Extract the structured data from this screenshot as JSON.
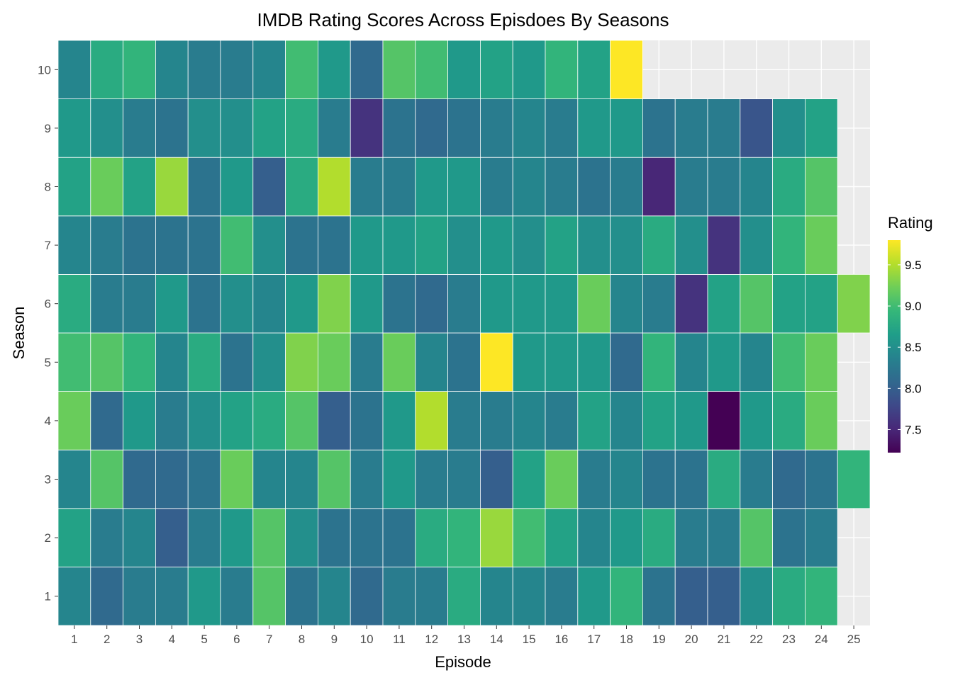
{
  "chart_data": {
    "type": "heatmap",
    "title": "IMDB Rating Scores Across Episdoes By Seasons",
    "xlabel": "Episode",
    "ylabel": "Season",
    "x_categories": [
      "1",
      "2",
      "3",
      "4",
      "5",
      "6",
      "7",
      "8",
      "9",
      "10",
      "11",
      "12",
      "13",
      "14",
      "15",
      "16",
      "17",
      "18",
      "19",
      "20",
      "21",
      "22",
      "23",
      "24",
      "25"
    ],
    "y_categories": [
      "1",
      "2",
      "3",
      "4",
      "5",
      "6",
      "7",
      "8",
      "9",
      "10"
    ],
    "values": [
      [
        8.4,
        8.1,
        8.3,
        8.3,
        8.6,
        8.3,
        9.1,
        8.2,
        8.4,
        8.1,
        8.3,
        8.3,
        8.8,
        8.4,
        8.4,
        8.3,
        8.6,
        8.9,
        8.2,
        8.0,
        8.0,
        8.5,
        8.8,
        8.9,
        null
      ],
      [
        8.7,
        8.3,
        8.4,
        8.0,
        8.3,
        8.6,
        9.1,
        8.5,
        8.2,
        8.2,
        8.2,
        8.8,
        8.9,
        9.4,
        9.0,
        8.7,
        8.4,
        8.6,
        8.8,
        8.3,
        8.3,
        9.1,
        8.2,
        8.3,
        null
      ],
      [
        8.4,
        9.1,
        8.1,
        8.1,
        8.2,
        9.2,
        8.4,
        8.4,
        9.1,
        8.3,
        8.6,
        8.3,
        8.3,
        8.0,
        8.7,
        9.2,
        8.3,
        8.4,
        8.2,
        8.2,
        8.8,
        8.3,
        8.1,
        8.2,
        8.9
      ],
      [
        9.2,
        8.1,
        8.6,
        8.3,
        8.5,
        8.7,
        8.8,
        9.1,
        8.0,
        8.2,
        8.6,
        9.5,
        8.3,
        8.3,
        8.4,
        8.3,
        8.7,
        8.4,
        8.7,
        8.6,
        7.2,
        8.6,
        8.8,
        9.2,
        null
      ],
      [
        9.0,
        9.1,
        8.9,
        8.4,
        8.8,
        8.2,
        8.5,
        9.3,
        9.2,
        8.3,
        9.2,
        8.4,
        8.2,
        9.8,
        8.6,
        8.6,
        8.6,
        8.1,
        8.9,
        8.4,
        8.6,
        8.4,
        9.0,
        9.2,
        null
      ],
      [
        8.8,
        8.3,
        8.3,
        8.6,
        8.2,
        8.5,
        8.4,
        8.6,
        9.3,
        8.6,
        8.2,
        8.1,
        8.3,
        8.6,
        8.6,
        8.6,
        9.2,
        8.4,
        8.3,
        7.6,
        8.7,
        9.1,
        8.7,
        8.7,
        9.3
      ],
      [
        8.4,
        8.3,
        8.2,
        8.2,
        8.2,
        9.0,
        8.5,
        8.2,
        8.2,
        8.6,
        8.6,
        8.7,
        8.5,
        8.6,
        8.5,
        8.7,
        8.5,
        8.5,
        8.8,
        8.5,
        7.6,
        8.5,
        8.9,
        9.2,
        null
      ],
      [
        8.7,
        9.2,
        8.7,
        9.4,
        8.2,
        8.6,
        8.0,
        8.8,
        9.5,
        8.3,
        8.3,
        8.6,
        8.6,
        8.3,
        8.4,
        8.3,
        8.2,
        8.3,
        7.5,
        8.3,
        8.3,
        8.4,
        8.8,
        9.1,
        null
      ],
      [
        8.6,
        8.5,
        8.3,
        8.2,
        8.5,
        8.5,
        8.7,
        8.8,
        8.3,
        7.6,
        8.2,
        8.1,
        8.2,
        8.3,
        8.4,
        8.3,
        8.6,
        8.6,
        8.2,
        8.3,
        8.3,
        7.9,
        8.5,
        8.7,
        null
      ],
      [
        8.4,
        8.8,
        8.9,
        8.4,
        8.3,
        8.3,
        8.4,
        9.0,
        8.6,
        8.1,
        9.1,
        9.0,
        8.6,
        8.7,
        8.6,
        8.9,
        8.7,
        9.8,
        null,
        null,
        null,
        null,
        null,
        null,
        null
      ]
    ],
    "legend": {
      "title": "Rating",
      "position": "right",
      "range": [
        7.22,
        9.8
      ],
      "ticks": [
        9.5,
        9.0,
        8.5,
        8.0,
        7.5
      ],
      "tick_labels": [
        "9.5",
        "9.0",
        "8.5",
        "8.0",
        "7.5"
      ]
    },
    "colormap": "viridis",
    "panel_background": "#ebebeb",
    "grid": true
  }
}
